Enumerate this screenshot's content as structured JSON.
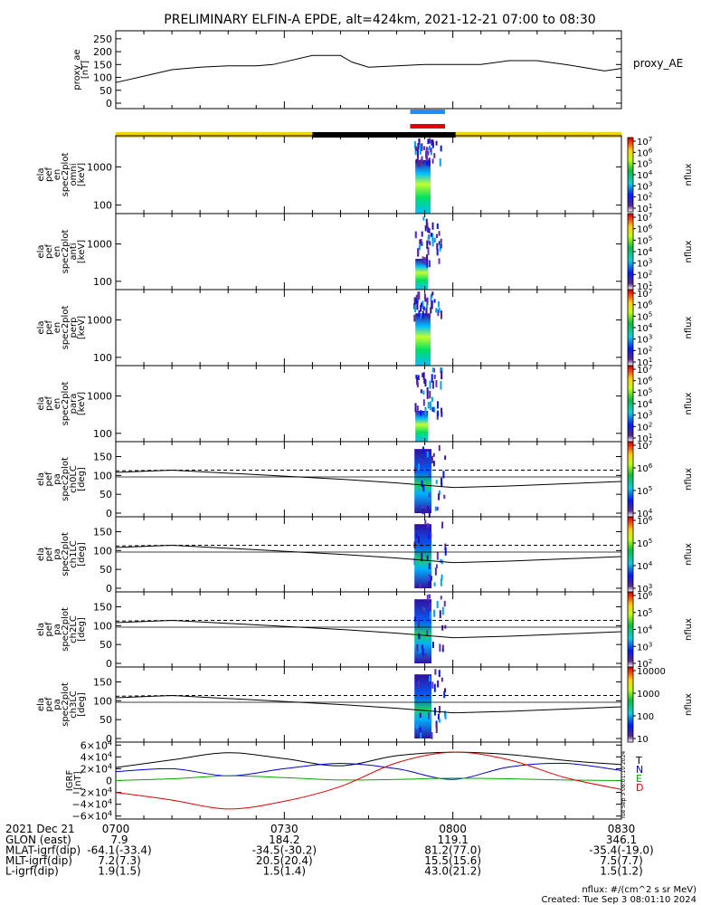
{
  "title": "PRELIMINARY ELFIN-A EPDE, alt=424km, 2021-12-21 07:00 to 08:30",
  "x_ticks": [
    "0700",
    "0730",
    "0800",
    "0830"
  ],
  "colors": {
    "sunlight_bar": "#f5d300",
    "shadow_bar": "#000000",
    "science_zone_upper": "#1f8fff",
    "science_zone_lower": "#e00000",
    "igrf_T": "#000000",
    "igrf_N": "#0000d0",
    "igrf_E": "#00aa00",
    "igrf_D": "#e00000"
  },
  "panels": [
    {
      "id": "proxy_ae",
      "ylabel": [
        "proxy_ae",
        "[nT]"
      ],
      "right_label": "proxy_AE",
      "yticks": [
        "250",
        "200",
        "150",
        "100",
        "50",
        "0"
      ]
    },
    {
      "id": "omni",
      "ylabel": [
        "ela",
        "pef",
        "en",
        "spec2plot",
        "omni",
        "[keV]"
      ],
      "yticks": [
        "1000",
        "100"
      ],
      "cb_ticks": [
        "10^7",
        "10^6",
        "10^5",
        "10^4",
        "10^3",
        "10^2",
        "10^1"
      ],
      "cb_label": "nflux"
    },
    {
      "id": "anti",
      "ylabel": [
        "ela",
        "pef",
        "en",
        "spec2plot",
        "anti",
        "[keV]"
      ],
      "yticks": [
        "1000",
        "100"
      ],
      "cb_ticks": [
        "10^7",
        "10^6",
        "10^5",
        "10^4",
        "10^3",
        "10^2",
        "10^1"
      ],
      "cb_label": "nflux"
    },
    {
      "id": "perp",
      "ylabel": [
        "ela",
        "pef",
        "en",
        "spec2plot",
        "perp",
        "[keV]"
      ],
      "yticks": [
        "1000",
        "100"
      ],
      "cb_ticks": [
        "10^7",
        "10^6",
        "10^5",
        "10^4",
        "10^3",
        "10^2",
        "10^1"
      ],
      "cb_label": "nflux"
    },
    {
      "id": "para",
      "ylabel": [
        "ela",
        "pef",
        "en",
        "spec2plot",
        "para",
        "[keV]"
      ],
      "yticks": [
        "1000",
        "100"
      ],
      "cb_ticks": [
        "10^7",
        "10^6",
        "10^5",
        "10^4",
        "10^3",
        "10^2",
        "10^1"
      ],
      "cb_label": "nflux"
    },
    {
      "id": "ch0LC",
      "ylabel": [
        "ela",
        "pef",
        "pa",
        "spec2plot",
        "ch0LC",
        "[deg]"
      ],
      "yticks": [
        "150",
        "100",
        "50",
        "0"
      ],
      "cb_ticks": [
        "10^7",
        "10^6",
        "10^5",
        "10^4"
      ],
      "cb_label": "nflux"
    },
    {
      "id": "ch1LC",
      "ylabel": [
        "ela",
        "pef",
        "pa",
        "spec2plot",
        "ch1LC",
        "[deg]"
      ],
      "yticks": [
        "150",
        "100",
        "50",
        "0"
      ],
      "cb_ticks": [
        "10^6",
        "10^5",
        "10^4",
        "10^3"
      ],
      "cb_label": "nflux"
    },
    {
      "id": "ch2LC",
      "ylabel": [
        "ela",
        "pef",
        "pa",
        "spec2plot",
        "ch2LC",
        "[deg]"
      ],
      "yticks": [
        "150",
        "100",
        "50",
        "0"
      ],
      "cb_ticks": [
        "10^6",
        "10^5",
        "10^4",
        "10^3",
        "10^2"
      ],
      "cb_label": "nflux"
    },
    {
      "id": "ch3LC",
      "ylabel": [
        "ela",
        "pef",
        "pa",
        "spec2plot",
        "ch3LC",
        "[deg]"
      ],
      "yticks": [
        "150",
        "100",
        "50",
        "0"
      ],
      "cb_ticks": [
        "10000",
        "1000",
        "100",
        "10"
      ],
      "cb_label": "nflux"
    },
    {
      "id": "igrf",
      "ylabel": [
        "IGRF",
        "[nT]"
      ],
      "yticks": [
        "6×10^4",
        "4×10^4",
        "2×10^4",
        "0",
        "−2×10^4",
        "−4×10^4",
        "−6×10^4"
      ],
      "legend": [
        "T",
        "N",
        "E",
        "D"
      ]
    }
  ],
  "ephemeris": {
    "header_label": "2021 Dec 21",
    "rows": [
      {
        "label": "GLON (east)",
        "values": [
          "7.9",
          "184.2",
          "119.1",
          "346.1"
        ]
      },
      {
        "label": "MLAT-igrf(dip)",
        "values": [
          "-64.1(-33.4)",
          "-34.5(-30.2)",
          "81.2(77.0)",
          "-35.4(-19.0)"
        ]
      },
      {
        "label": "MLT-igrf(dip)",
        "values": [
          "7.2(7.3)",
          "20.5(20.4)",
          "15.5(15.6)",
          "7.5(7.7)"
        ]
      },
      {
        "label": "L-igrf(dip)",
        "values": [
          "1.9(1.5)",
          "1.5(1.4)",
          "43.0(21.2)",
          "1.5(1.2)"
        ]
      }
    ]
  },
  "footer": {
    "units": "nflux: #/(cm^2 s sr MeV)",
    "created": "Created: Tue Sep  3 08:01:10 2024",
    "side_stamp": "Tue Sep  3 08:01:10 2024"
  },
  "chart_data": [
    {
      "type": "line",
      "title": "PRELIMINARY ELFIN-A EPDE, alt=424km, 2021-12-21 07:00 to 08:30",
      "ylabel": "proxy_ae [nT]",
      "xlim": [
        "07:00",
        "08:30"
      ],
      "ylim": [
        0,
        260
      ],
      "x": [
        "07:00",
        "07:05",
        "07:10",
        "07:15",
        "07:20",
        "07:25",
        "07:28",
        "07:35",
        "07:40",
        "07:42",
        "07:45",
        "07:50",
        "07:55",
        "08:00",
        "08:02",
        "08:05",
        "08:10",
        "08:15",
        "08:20",
        "08:23",
        "08:27",
        "08:30"
      ],
      "series": [
        {
          "name": "proxy_AE",
          "values": [
            80,
            105,
            130,
            140,
            145,
            145,
            150,
            185,
            185,
            160,
            140,
            145,
            150,
            150,
            150,
            150,
            165,
            165,
            150,
            140,
            125,
            135
          ]
        }
      ]
    },
    {
      "type": "heatmap",
      "panels": [
        "omni",
        "anti",
        "perp",
        "para"
      ],
      "ylabel": "energy [keV]",
      "y_scale": "log",
      "ylim": [
        60,
        6500
      ],
      "xlim": [
        "07:00",
        "08:30"
      ],
      "colorbar": "nflux",
      "colorbar_range": [
        10,
        10000000.0
      ],
      "data_window": [
        "07:53",
        "07:57"
      ],
      "peak_energy_keV": 80
    },
    {
      "type": "heatmap",
      "panels": [
        "ch0LC",
        "ch1LC",
        "ch2LC",
        "ch3LC"
      ],
      "ylabel": "pitch angle [deg]",
      "ylim": [
        0,
        180
      ],
      "xlim": [
        "07:00",
        "08:30"
      ],
      "colorbar": "nflux",
      "data_window": [
        "07:53",
        "07:57"
      ],
      "overlay_lines": [
        "loss cone (solid)",
        "anti-loss cone (dashed)"
      ]
    },
    {
      "type": "line",
      "ylabel": "IGRF [nT]",
      "ylim": [
        -65000,
        65000
      ],
      "xlim": [
        "07:00",
        "08:30"
      ],
      "x": [
        "07:00",
        "07:10",
        "07:20",
        "07:30",
        "07:40",
        "07:50",
        "08:00",
        "08:10",
        "08:20",
        "08:30"
      ],
      "series": [
        {
          "name": "T",
          "values": [
            22000,
            35000,
            47000,
            37000,
            25000,
            42000,
            48000,
            44000,
            34000,
            27000
          ]
        },
        {
          "name": "N",
          "values": [
            15000,
            20000,
            8000,
            20000,
            29000,
            20000,
            2000,
            23000,
            29000,
            17000
          ]
        },
        {
          "name": "E",
          "values": [
            0,
            3000,
            8000,
            5000,
            1000,
            2000,
            4000,
            3000,
            1000,
            0
          ]
        },
        {
          "name": "D",
          "values": [
            -20000,
            -33000,
            -48000,
            -35000,
            -10000,
            30000,
            48000,
            35000,
            5000,
            -15000
          ]
        }
      ]
    }
  ]
}
